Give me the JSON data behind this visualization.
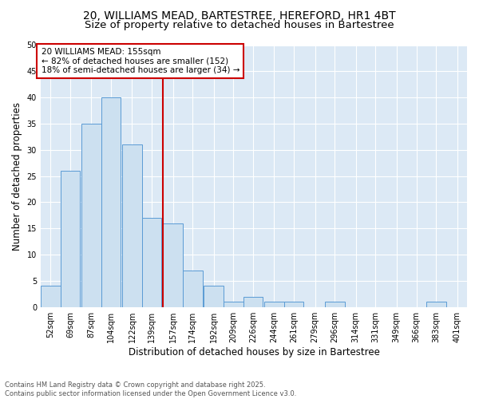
{
  "title_line1": "20, WILLIAMS MEAD, BARTESTREE, HEREFORD, HR1 4BT",
  "title_line2": "Size of property relative to detached houses in Bartestree",
  "xlabel": "Distribution of detached houses by size in Bartestree",
  "ylabel": "Number of detached properties",
  "bin_labels": [
    "52sqm",
    "69sqm",
    "87sqm",
    "104sqm",
    "122sqm",
    "139sqm",
    "157sqm",
    "174sqm",
    "192sqm",
    "209sqm",
    "226sqm",
    "244sqm",
    "261sqm",
    "279sqm",
    "296sqm",
    "314sqm",
    "331sqm",
    "349sqm",
    "366sqm",
    "383sqm",
    "401sqm"
  ],
  "bin_starts": [
    52,
    69,
    87,
    104,
    122,
    139,
    157,
    174,
    192,
    209,
    226,
    244,
    261,
    279,
    296,
    314,
    331,
    349,
    366,
    383,
    401
  ],
  "bin_width": 17,
  "values": [
    4,
    26,
    35,
    40,
    31,
    17,
    16,
    7,
    4,
    1,
    2,
    1,
    1,
    0,
    1,
    0,
    0,
    0,
    0,
    1
  ],
  "bar_color": "#cce0f0",
  "bar_edge_color": "#5b9bd5",
  "reference_line_x": 157,
  "annotation_text": "20 WILLIAMS MEAD: 155sqm\n← 82% of detached houses are smaller (152)\n18% of semi-detached houses are larger (34) →",
  "annotation_box_color": "#ffffff",
  "annotation_box_edge_color": "#cc0000",
  "ref_line_color": "#cc0000",
  "ylim": [
    0,
    50
  ],
  "yticks": [
    0,
    5,
    10,
    15,
    20,
    25,
    30,
    35,
    40,
    45,
    50
  ],
  "background_color": "#dce9f5",
  "footer_text": "Contains HM Land Registry data © Crown copyright and database right 2025.\nContains public sector information licensed under the Open Government Licence v3.0.",
  "title_fontsize": 10,
  "subtitle_fontsize": 9.5,
  "tick_fontsize": 7,
  "axis_label_fontsize": 8.5,
  "annotation_fontsize": 7.5
}
